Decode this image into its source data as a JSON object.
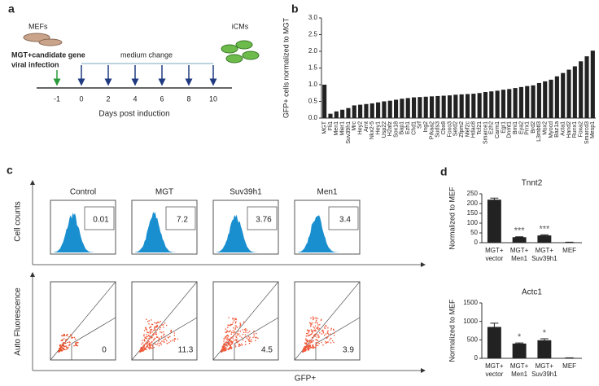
{
  "timeline": {
    "panel": "a",
    "start_cells": "MEFs",
    "infection_line1": "MGT+candidate gene",
    "infection_line2": "viral infection",
    "medium": "medium change",
    "end_cells": "iCMs",
    "days": [
      -1,
      0,
      2,
      4,
      6,
      8,
      10
    ],
    "axis_label": "Days post induction"
  },
  "flow_cytometry": {
    "panel": "c",
    "conditions": [
      "Control",
      "MGT",
      "Suv39h1",
      "Men1"
    ],
    "histogram_gates": [
      0.01,
      7.2,
      3.76,
      3.4
    ],
    "scatter_gates": [
      0,
      11.3,
      4.5,
      3.9
    ],
    "top_ylabel": "Cell counts",
    "bottom_ylabel": "Auto Fluorescence",
    "xlabel": "GFP+"
  },
  "chart_data": [
    {
      "type": "bar",
      "panel": "b",
      "ylabel": "GFP+ cells  normalized to MGT",
      "color": "#222222",
      "categories": [
        "MGT",
        "Fli1",
        "Men1",
        "Mier1",
        "Suv39h1",
        "Mrc",
        "Hey2",
        "Arnt",
        "Nkx2-5",
        "Hey1",
        "Usp22",
        "H2afz",
        "Sox18",
        "Bap1",
        "Ezh1",
        "Chd1",
        "Srf",
        "Ing2",
        "Prkaa2",
        "Suds3",
        "Cbx8",
        "Foxo3",
        "Setd2",
        "Zfpm2",
        "Mef2c",
        "Hdac8",
        "Tcf21",
        "Smarce1",
        "Ezh2",
        "Carm1",
        "Egr1",
        "Dnmt1",
        "Bmi1",
        "Eya2",
        "Prrx1",
        "Brd2",
        "L3mbtl3",
        "Msx2",
        "Myocd",
        "Baz1a",
        "Acta1",
        "Hand2",
        "Runx1",
        "Foxa2",
        "Smarcd3",
        "Mesp1"
      ],
      "values": [
        1.0,
        0.13,
        0.2,
        0.25,
        0.3,
        0.38,
        0.4,
        0.42,
        0.44,
        0.47,
        0.5,
        0.52,
        0.55,
        0.58,
        0.6,
        0.62,
        0.63,
        0.64,
        0.65,
        0.66,
        0.67,
        0.68,
        0.7,
        0.71,
        0.72,
        0.73,
        0.75,
        0.78,
        0.8,
        0.82,
        0.85,
        0.87,
        0.9,
        0.93,
        0.96,
        0.98,
        1.05,
        1.1,
        1.15,
        1.25,
        1.35,
        1.45,
        1.55,
        1.7,
        1.85,
        2.02
      ],
      "ylim": [
        0,
        3.0
      ],
      "yticks": [
        {
          "value": 0,
          "label": "0.0"
        },
        0.5,
        {
          "value": 1,
          "label": "1.0"
        },
        1.5,
        {
          "value": 2,
          "label": "2.0"
        },
        2.5,
        {
          "value": 3,
          "label": "3.0"
        }
      ]
    },
    {
      "type": "bar",
      "panel": "d",
      "title": "Tnnt2",
      "ylabel": "Normalized to MEF",
      "color": "#222222",
      "categories": [
        [
          "MGT+",
          "vector"
        ],
        [
          "MGT+",
          "Men1"
        ],
        [
          "MGT+",
          "Suv39h1"
        ],
        [
          "MEF"
        ]
      ],
      "values": [
        220,
        28,
        37,
        2
      ],
      "errors": [
        8,
        2,
        3,
        0.5
      ],
      "annotations": [
        null,
        "***",
        "***",
        null
      ],
      "ylim": [
        0,
        250
      ],
      "yticks": [
        0,
        50,
        100,
        150,
        200,
        250
      ]
    },
    {
      "type": "bar",
      "panel": null,
      "title": "Actc1",
      "ylabel": "Normalized to MEF",
      "color": "#222222",
      "categories": [
        [
          "MGT+",
          "vector"
        ],
        [
          "MGT+",
          "Men1"
        ],
        [
          "MGT+",
          "Suv39h1"
        ],
        [
          "MEF"
        ]
      ],
      "values": [
        850,
        400,
        490,
        10
      ],
      "errors": [
        100,
        15,
        40,
        3
      ],
      "annotations": [
        null,
        "*",
        "*",
        null
      ],
      "ylim": [
        0,
        1500
      ],
      "yticks": [
        0,
        500,
        1000,
        1500
      ]
    }
  ]
}
